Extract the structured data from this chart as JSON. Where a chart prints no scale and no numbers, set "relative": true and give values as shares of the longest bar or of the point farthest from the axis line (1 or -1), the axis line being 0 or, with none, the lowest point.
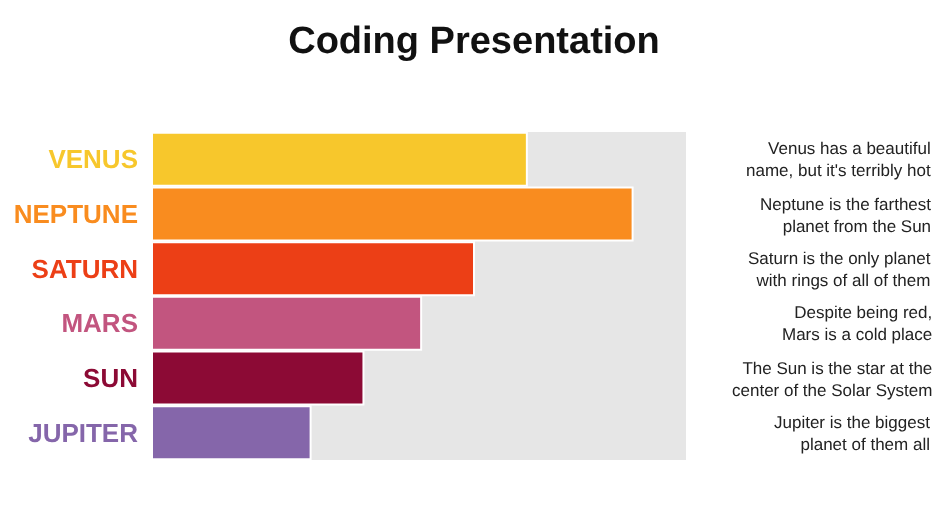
{
  "chart_data": {
    "type": "bar",
    "orientation": "horizontal",
    "relative": true,
    "title": "Coding Presentation",
    "categories": [
      "VENUS",
      "NEPTUNE",
      "SATURN",
      "MARS",
      "SUN",
      "JUPITER"
    ],
    "values": [
      0.78,
      1,
      0.67,
      0.56,
      0.44,
      0.33
    ],
    "colors": [
      "#f7c72c",
      "#f98c1f",
      "#ec3f16",
      "#c2557f",
      "#8c0a35",
      "#8566aa"
    ],
    "annotations": [
      "Venus has a beautiful\nname, but it's terribly hot",
      "Neptune is the farthest\nplanet from the Sun",
      "Saturn is the only planet\nwith rings of all of them",
      "Despite being red,\nMars is a cold place",
      "The Sun is the star at the\ncenter of the Solar System",
      "Jupiter is the biggest\nplanet of them all"
    ]
  }
}
